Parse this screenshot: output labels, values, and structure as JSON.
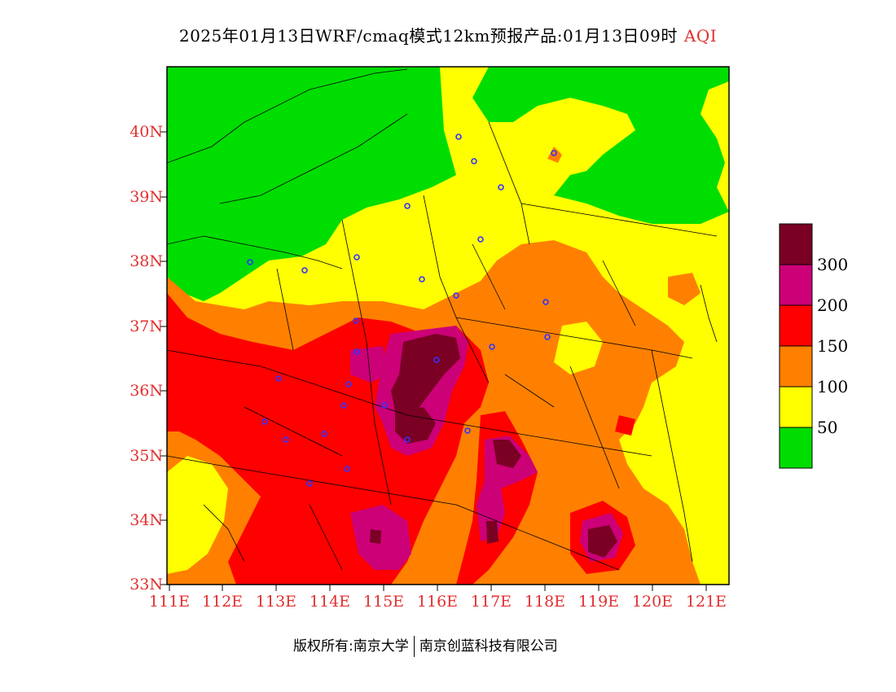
{
  "title": "2025年01月13日WRF/cmaq模式12km预报产品:01月13日09时",
  "title_tag": "AQI",
  "lat_labels": [
    "40N",
    "39N",
    "38N",
    "37N",
    "36N",
    "35N",
    "34N",
    "33N"
  ],
  "lon_labels": [
    "111E",
    "112E",
    "113E",
    "114E",
    "115E",
    "116E",
    "117E",
    "118E",
    "119E",
    "120E",
    "121E"
  ],
  "legend": {
    "labels": [
      "300",
      "200",
      "150",
      "100",
      "50"
    ],
    "colors": [
      "#7a0024",
      "#cc0077",
      "#ff0000",
      "#ff8000",
      "#ffff00",
      "#00dd00"
    ]
  },
  "footer": {
    "left": "版权所有:南京大学",
    "right": "南京创蓝科技有限公司"
  }
}
